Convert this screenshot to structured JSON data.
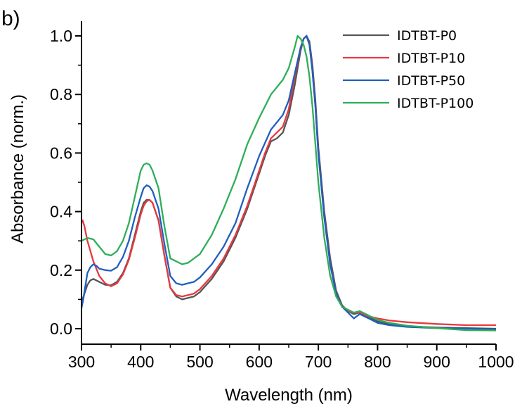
{
  "panel_label": "b)",
  "chart_data": {
    "type": "line",
    "title": "",
    "xlabel": "Wavelength (nm)",
    "ylabel": "Absorbance (norm.)",
    "xlim": [
      300,
      1000
    ],
    "ylim": [
      -0.05,
      1.05
    ],
    "xticks": [
      300,
      400,
      500,
      600,
      700,
      800,
      900,
      1000
    ],
    "yticks": [
      0.0,
      0.2,
      0.4,
      0.6,
      0.8,
      1.0
    ],
    "ytick_labels": [
      "0.0",
      "0.2",
      "0.4",
      "0.6",
      "0.8",
      "1.0"
    ],
    "grid": false,
    "legend_position": "top-right",
    "series": [
      {
        "name": "IDTBT-P0",
        "color": "#555555",
        "x": [
          300,
          305,
          310,
          315,
          320,
          325,
          330,
          340,
          350,
          360,
          370,
          380,
          390,
          400,
          405,
          410,
          415,
          420,
          430,
          440,
          450,
          460,
          470,
          480,
          490,
          500,
          520,
          540,
          560,
          580,
          600,
          610,
          620,
          630,
          640,
          650,
          660,
          670,
          675,
          680,
          685,
          690,
          695,
          700,
          710,
          720,
          730,
          740,
          750,
          760,
          770,
          780,
          790,
          800,
          820,
          850,
          900,
          950,
          1000
        ],
        "y": [
          0.09,
          0.12,
          0.15,
          0.165,
          0.17,
          0.165,
          0.16,
          0.15,
          0.148,
          0.16,
          0.19,
          0.24,
          0.32,
          0.4,
          0.43,
          0.44,
          0.44,
          0.43,
          0.37,
          0.25,
          0.14,
          0.11,
          0.1,
          0.105,
          0.11,
          0.125,
          0.17,
          0.23,
          0.31,
          0.41,
          0.53,
          0.59,
          0.64,
          0.65,
          0.67,
          0.73,
          0.83,
          0.95,
          0.99,
          1.0,
          0.98,
          0.9,
          0.78,
          0.62,
          0.4,
          0.24,
          0.13,
          0.08,
          0.06,
          0.05,
          0.055,
          0.045,
          0.035,
          0.025,
          0.015,
          0.008,
          0.004,
          0.002,
          0.0
        ]
      },
      {
        "name": "IDTBT-P10",
        "color": "#e8393f",
        "x": [
          300,
          302,
          305,
          310,
          320,
          330,
          340,
          350,
          360,
          370,
          380,
          390,
          400,
          405,
          410,
          415,
          420,
          430,
          440,
          450,
          460,
          470,
          480,
          490,
          500,
          520,
          540,
          560,
          580,
          600,
          610,
          620,
          630,
          640,
          650,
          660,
          670,
          675,
          680,
          685,
          690,
          695,
          700,
          710,
          720,
          730,
          740,
          750,
          760,
          770,
          780,
          790,
          800,
          820,
          850,
          900,
          950,
          1000
        ],
        "y": [
          0.36,
          0.37,
          0.35,
          0.3,
          0.23,
          0.18,
          0.155,
          0.145,
          0.155,
          0.185,
          0.235,
          0.31,
          0.39,
          0.42,
          0.435,
          0.44,
          0.43,
          0.37,
          0.25,
          0.14,
          0.115,
          0.11,
          0.115,
          0.12,
          0.135,
          0.18,
          0.24,
          0.32,
          0.42,
          0.54,
          0.6,
          0.65,
          0.67,
          0.69,
          0.75,
          0.86,
          0.96,
          0.99,
          1.0,
          0.97,
          0.88,
          0.76,
          0.6,
          0.38,
          0.22,
          0.12,
          0.075,
          0.06,
          0.055,
          0.055,
          0.045,
          0.04,
          0.035,
          0.028,
          0.022,
          0.016,
          0.012,
          0.012
        ]
      },
      {
        "name": "IDTBT-P50",
        "color": "#1f5fbf",
        "x": [
          300,
          303,
          306,
          310,
          315,
          320,
          325,
          330,
          340,
          350,
          360,
          370,
          380,
          390,
          400,
          405,
          410,
          415,
          420,
          430,
          440,
          450,
          460,
          470,
          480,
          490,
          500,
          520,
          540,
          560,
          580,
          600,
          620,
          640,
          650,
          660,
          670,
          675,
          680,
          685,
          690,
          695,
          700,
          710,
          720,
          730,
          740,
          750,
          760,
          770,
          780,
          790,
          800,
          820,
          850,
          900,
          950,
          1000
        ],
        "y": [
          0.07,
          0.1,
          0.14,
          0.19,
          0.21,
          0.22,
          0.215,
          0.205,
          0.2,
          0.198,
          0.21,
          0.245,
          0.3,
          0.38,
          0.45,
          0.48,
          0.49,
          0.485,
          0.47,
          0.41,
          0.29,
          0.18,
          0.155,
          0.15,
          0.155,
          0.16,
          0.175,
          0.22,
          0.28,
          0.36,
          0.48,
          0.59,
          0.68,
          0.73,
          0.78,
          0.87,
          0.96,
          0.99,
          1.0,
          0.97,
          0.88,
          0.76,
          0.6,
          0.38,
          0.22,
          0.12,
          0.075,
          0.055,
          0.035,
          0.05,
          0.04,
          0.03,
          0.02,
          0.012,
          0.006,
          0.002,
          0.0,
          -0.003
        ]
      },
      {
        "name": "IDTBT-P100",
        "color": "#2fae5a",
        "x": [
          300,
          305,
          310,
          320,
          330,
          340,
          350,
          360,
          370,
          380,
          390,
          400,
          405,
          410,
          415,
          420,
          430,
          440,
          450,
          460,
          470,
          480,
          490,
          500,
          520,
          540,
          560,
          580,
          600,
          620,
          640,
          650,
          660,
          665,
          670,
          675,
          680,
          685,
          690,
          695,
          700,
          710,
          720,
          730,
          740,
          750,
          760,
          770,
          780,
          790,
          800,
          820,
          850,
          900,
          950,
          1000
        ],
        "y": [
          0.3,
          0.305,
          0.31,
          0.305,
          0.28,
          0.255,
          0.25,
          0.265,
          0.3,
          0.36,
          0.45,
          0.54,
          0.56,
          0.565,
          0.56,
          0.54,
          0.48,
          0.35,
          0.24,
          0.23,
          0.22,
          0.225,
          0.24,
          0.255,
          0.32,
          0.41,
          0.51,
          0.63,
          0.72,
          0.8,
          0.85,
          0.89,
          0.96,
          1.0,
          0.99,
          0.97,
          0.93,
          0.86,
          0.76,
          0.63,
          0.5,
          0.31,
          0.18,
          0.11,
          0.075,
          0.065,
          0.055,
          0.06,
          0.05,
          0.04,
          0.03,
          0.02,
          0.01,
          0.002,
          -0.005,
          -0.006
        ]
      }
    ]
  }
}
